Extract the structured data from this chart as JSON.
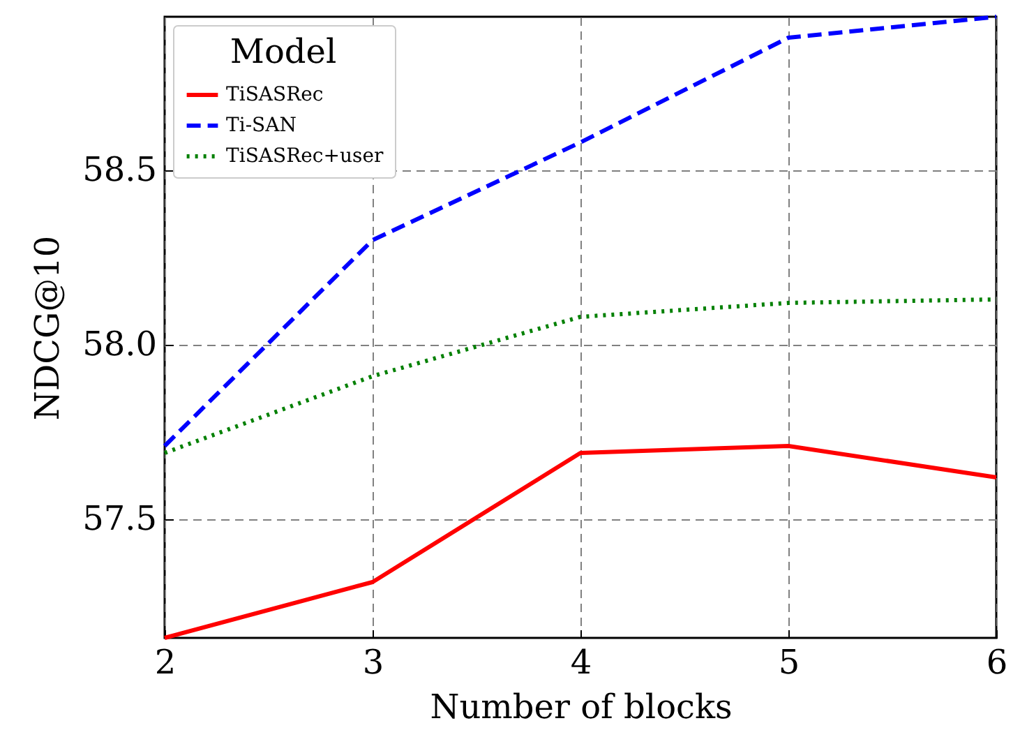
{
  "chart_data": {
    "type": "line",
    "xlabel": "Number of blocks",
    "ylabel": "NDCG@10",
    "legend_title": "Model",
    "x": [
      2,
      3,
      4,
      5,
      6
    ],
    "series": [
      {
        "name": "TiSASRec",
        "color": "#ff0000",
        "line_style": "solid",
        "values": [
          57.16,
          57.32,
          57.69,
          57.71,
          57.62
        ]
      },
      {
        "name": "Ti-SAN",
        "color": "#0000ff",
        "line_style": "dashed",
        "values": [
          57.71,
          58.3,
          58.58,
          58.88,
          58.94
        ]
      },
      {
        "name": "TiSASRec+user",
        "color": "#008000",
        "line_style": "dotted",
        "values": [
          57.69,
          57.91,
          58.08,
          58.12,
          58.13
        ]
      }
    ],
    "xlim": [
      2,
      6
    ],
    "xticks": [
      2,
      3,
      4,
      5,
      6
    ],
    "ylim": [
      57.16,
      58.94
    ],
    "yticks": [
      57.5,
      {
        "value": 58.0,
        "label": "58.0"
      },
      58.5
    ],
    "grid": true,
    "legend": "top left",
    "marker": "none"
  }
}
